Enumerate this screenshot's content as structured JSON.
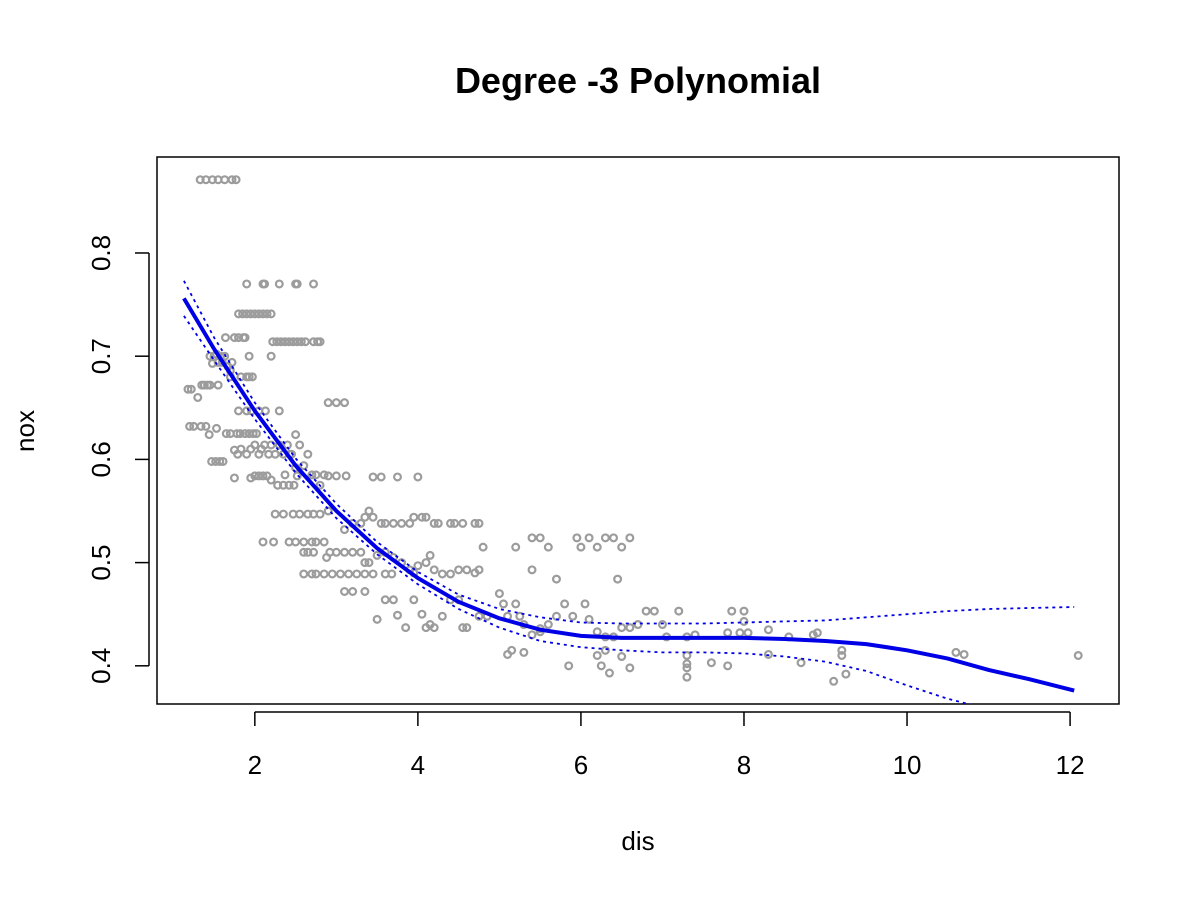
{
  "chart_data": {
    "type": "scatter",
    "title": "Degree -3 Polynomial",
    "xlabel": "dis",
    "ylabel": "nox",
    "xlim": [
      0.8,
      12.6
    ],
    "ylim": [
      0.363,
      0.893
    ],
    "x_ticks": [
      2,
      4,
      6,
      8,
      10,
      12
    ],
    "y_ticks": [
      0.4,
      0.5,
      0.6,
      0.7,
      0.8
    ],
    "grid": false,
    "legend": "none",
    "colors": {
      "points": "#9c9c9c",
      "fit": "#0000e6",
      "band": "#0000e6"
    },
    "points": [
      [
        1.33,
        0.871
      ],
      [
        1.4,
        0.871
      ],
      [
        1.48,
        0.871
      ],
      [
        1.55,
        0.871
      ],
      [
        1.63,
        0.871
      ],
      [
        1.72,
        0.871
      ],
      [
        1.77,
        0.871
      ],
      [
        1.18,
        0.668
      ],
      [
        1.22,
        0.668
      ],
      [
        1.2,
        0.632
      ],
      [
        1.25,
        0.632
      ],
      [
        1.3,
        0.66
      ],
      [
        1.35,
        0.672
      ],
      [
        1.38,
        0.672
      ],
      [
        1.42,
        0.672
      ],
      [
        1.45,
        0.672
      ],
      [
        1.34,
        0.632
      ],
      [
        1.4,
        0.632
      ],
      [
        1.44,
        0.624
      ],
      [
        1.53,
        0.63
      ],
      [
        1.47,
        0.598
      ],
      [
        1.52,
        0.598
      ],
      [
        1.57,
        0.598
      ],
      [
        1.61,
        0.598
      ],
      [
        1.45,
        0.7
      ],
      [
        1.48,
        0.693
      ],
      [
        1.5,
        0.7
      ],
      [
        1.53,
        0.702
      ],
      [
        1.55,
        0.694
      ],
      [
        1.58,
        0.7
      ],
      [
        1.6,
        0.694
      ],
      [
        1.63,
        0.7
      ],
      [
        1.67,
        0.69
      ],
      [
        1.7,
        0.686
      ],
      [
        1.72,
        0.694
      ],
      [
        1.55,
        0.672
      ],
      [
        1.64,
        0.718
      ],
      [
        1.7,
        0.68
      ],
      [
        1.75,
        0.718
      ],
      [
        1.8,
        0.718
      ],
      [
        1.83,
        0.68
      ],
      [
        1.86,
        0.718
      ],
      [
        1.88,
        0.718
      ],
      [
        1.9,
        0.68
      ],
      [
        1.93,
        0.68
      ],
      [
        1.97,
        0.68
      ],
      [
        1.65,
        0.625
      ],
      [
        1.7,
        0.625
      ],
      [
        1.78,
        0.625
      ],
      [
        1.82,
        0.625
      ],
      [
        1.88,
        0.625
      ],
      [
        1.93,
        0.625
      ],
      [
        1.98,
        0.625
      ],
      [
        2.02,
        0.625
      ],
      [
        1.8,
        0.741
      ],
      [
        1.85,
        0.741
      ],
      [
        1.9,
        0.741
      ],
      [
        1.95,
        0.741
      ],
      [
        2.0,
        0.741
      ],
      [
        2.05,
        0.741
      ],
      [
        2.1,
        0.741
      ],
      [
        2.15,
        0.741
      ],
      [
        2.2,
        0.741
      ],
      [
        1.9,
        0.77
      ],
      [
        2.1,
        0.77
      ],
      [
        2.12,
        0.77
      ],
      [
        2.3,
        0.77
      ],
      [
        2.5,
        0.77
      ],
      [
        2.52,
        0.77
      ],
      [
        2.72,
        0.77
      ],
      [
        1.93,
        0.7
      ],
      [
        2.2,
        0.7
      ],
      [
        2.22,
        0.714
      ],
      [
        2.27,
        0.714
      ],
      [
        2.32,
        0.714
      ],
      [
        2.37,
        0.714
      ],
      [
        2.42,
        0.714
      ],
      [
        2.47,
        0.714
      ],
      [
        2.52,
        0.714
      ],
      [
        2.57,
        0.714
      ],
      [
        2.62,
        0.714
      ],
      [
        2.72,
        0.714
      ],
      [
        2.77,
        0.714
      ],
      [
        2.8,
        0.714
      ],
      [
        1.8,
        0.647
      ],
      [
        1.9,
        0.647
      ],
      [
        1.96,
        0.647
      ],
      [
        2.05,
        0.647
      ],
      [
        2.13,
        0.647
      ],
      [
        2.3,
        0.647
      ],
      [
        1.75,
        0.609
      ],
      [
        1.79,
        0.605
      ],
      [
        1.83,
        0.61
      ],
      [
        1.9,
        0.605
      ],
      [
        1.95,
        0.61
      ],
      [
        2.0,
        0.614
      ],
      [
        2.05,
        0.605
      ],
      [
        2.08,
        0.61
      ],
      [
        2.12,
        0.614
      ],
      [
        2.17,
        0.605
      ],
      [
        2.2,
        0.614
      ],
      [
        2.25,
        0.605
      ],
      [
        2.3,
        0.614
      ],
      [
        2.35,
        0.605
      ],
      [
        2.4,
        0.614
      ],
      [
        2.45,
        0.605
      ],
      [
        2.5,
        0.624
      ],
      [
        1.75,
        0.582
      ],
      [
        1.95,
        0.582
      ],
      [
        2.0,
        0.584
      ],
      [
        2.05,
        0.584
      ],
      [
        2.1,
        0.584
      ],
      [
        2.15,
        0.584
      ],
      [
        2.2,
        0.58
      ],
      [
        2.28,
        0.575
      ],
      [
        2.35,
        0.575
      ],
      [
        2.42,
        0.575
      ],
      [
        2.48,
        0.575
      ],
      [
        2.52,
        0.584
      ],
      [
        2.37,
        0.585
      ],
      [
        2.43,
        0.605
      ],
      [
        2.5,
        0.592
      ],
      [
        2.55,
        0.614
      ],
      [
        2.6,
        0.594
      ],
      [
        2.65,
        0.605
      ],
      [
        2.7,
        0.585
      ],
      [
        2.75,
        0.585
      ],
      [
        2.8,
        0.575
      ],
      [
        2.85,
        0.585
      ],
      [
        2.9,
        0.584
      ],
      [
        3.0,
        0.584
      ],
      [
        3.12,
        0.584
      ],
      [
        2.1,
        0.52
      ],
      [
        2.23,
        0.52
      ],
      [
        2.42,
        0.52
      ],
      [
        2.5,
        0.52
      ],
      [
        2.6,
        0.52
      ],
      [
        2.7,
        0.52
      ],
      [
        2.75,
        0.52
      ],
      [
        2.85,
        0.52
      ],
      [
        2.25,
        0.547
      ],
      [
        2.35,
        0.547
      ],
      [
        2.47,
        0.547
      ],
      [
        2.55,
        0.547
      ],
      [
        2.65,
        0.547
      ],
      [
        2.72,
        0.547
      ],
      [
        2.8,
        0.547
      ],
      [
        2.9,
        0.55
      ],
      [
        2.6,
        0.51
      ],
      [
        2.65,
        0.51
      ],
      [
        2.72,
        0.51
      ],
      [
        2.88,
        0.505
      ],
      [
        2.92,
        0.51
      ],
      [
        3.0,
        0.51
      ],
      [
        3.1,
        0.51
      ],
      [
        3.2,
        0.51
      ],
      [
        3.3,
        0.51
      ],
      [
        2.6,
        0.489
      ],
      [
        2.7,
        0.489
      ],
      [
        2.75,
        0.489
      ],
      [
        2.85,
        0.489
      ],
      [
        2.95,
        0.489
      ],
      [
        3.05,
        0.489
      ],
      [
        3.15,
        0.489
      ],
      [
        3.25,
        0.489
      ],
      [
        3.35,
        0.489
      ],
      [
        3.45,
        0.489
      ],
      [
        3.6,
        0.489
      ],
      [
        3.68,
        0.489
      ],
      [
        2.9,
        0.655
      ],
      [
        3.0,
        0.655
      ],
      [
        3.1,
        0.655
      ],
      [
        3.1,
        0.532
      ],
      [
        3.2,
        0.538
      ],
      [
        3.3,
        0.538
      ],
      [
        3.35,
        0.544
      ],
      [
        3.4,
        0.55
      ],
      [
        3.45,
        0.544
      ],
      [
        3.55,
        0.538
      ],
      [
        3.6,
        0.538
      ],
      [
        3.7,
        0.538
      ],
      [
        3.8,
        0.538
      ],
      [
        3.9,
        0.538
      ],
      [
        3.95,
        0.544
      ],
      [
        4.05,
        0.544
      ],
      [
        4.1,
        0.544
      ],
      [
        4.2,
        0.538
      ],
      [
        4.25,
        0.538
      ],
      [
        4.4,
        0.538
      ],
      [
        4.45,
        0.538
      ],
      [
        4.55,
        0.538
      ],
      [
        4.7,
        0.538
      ],
      [
        4.75,
        0.538
      ],
      [
        3.1,
        0.472
      ],
      [
        3.2,
        0.472
      ],
      [
        3.35,
        0.472
      ],
      [
        3.5,
        0.445
      ],
      [
        3.6,
        0.464
      ],
      [
        3.7,
        0.464
      ],
      [
        3.75,
        0.449
      ],
      [
        3.85,
        0.437
      ],
      [
        3.45,
        0.583
      ],
      [
        3.55,
        0.583
      ],
      [
        3.75,
        0.583
      ],
      [
        4.0,
        0.583
      ],
      [
        3.35,
        0.5
      ],
      [
        3.4,
        0.5
      ],
      [
        3.5,
        0.507
      ],
      [
        3.6,
        0.51
      ],
      [
        3.7,
        0.505
      ],
      [
        3.8,
        0.5
      ],
      [
        3.9,
        0.493
      ],
      [
        3.95,
        0.49
      ],
      [
        4.0,
        0.497
      ],
      [
        4.1,
        0.5
      ],
      [
        4.15,
        0.507
      ],
      [
        4.2,
        0.493
      ],
      [
        4.3,
        0.489
      ],
      [
        4.4,
        0.489
      ],
      [
        4.5,
        0.493
      ],
      [
        4.6,
        0.493
      ],
      [
        4.7,
        0.49
      ],
      [
        4.75,
        0.493
      ],
      [
        4.8,
        0.515
      ],
      [
        3.95,
        0.464
      ],
      [
        4.05,
        0.45
      ],
      [
        4.1,
        0.437
      ],
      [
        4.15,
        0.44
      ],
      [
        4.2,
        0.437
      ],
      [
        4.3,
        0.448
      ],
      [
        4.4,
        0.464
      ],
      [
        4.5,
        0.464
      ],
      [
        4.55,
        0.437
      ],
      [
        4.6,
        0.437
      ],
      [
        4.75,
        0.448
      ],
      [
        4.85,
        0.448
      ],
      [
        5.0,
        0.47
      ],
      [
        5.05,
        0.46
      ],
      [
        5.1,
        0.448
      ],
      [
        5.2,
        0.46
      ],
      [
        5.25,
        0.448
      ],
      [
        5.3,
        0.44
      ],
      [
        5.4,
        0.493
      ],
      [
        5.5,
        0.436
      ],
      [
        5.6,
        0.44
      ],
      [
        5.7,
        0.448
      ],
      [
        5.8,
        0.46
      ],
      [
        5.9,
        0.448
      ],
      [
        6.05,
        0.46
      ],
      [
        6.1,
        0.445
      ],
      [
        5.1,
        0.411
      ],
      [
        5.15,
        0.415
      ],
      [
        5.3,
        0.413
      ],
      [
        5.4,
        0.43
      ],
      [
        5.5,
        0.433
      ],
      [
        5.2,
        0.515
      ],
      [
        5.4,
        0.524
      ],
      [
        5.5,
        0.524
      ],
      [
        5.6,
        0.515
      ],
      [
        5.95,
        0.524
      ],
      [
        6.0,
        0.515
      ],
      [
        6.1,
        0.524
      ],
      [
        6.2,
        0.515
      ],
      [
        6.3,
        0.524
      ],
      [
        6.4,
        0.524
      ],
      [
        6.5,
        0.515
      ],
      [
        6.6,
        0.524
      ],
      [
        5.7,
        0.484
      ],
      [
        6.45,
        0.484
      ],
      [
        5.85,
        0.4
      ],
      [
        6.2,
        0.41
      ],
      [
        6.25,
        0.4
      ],
      [
        6.3,
        0.415
      ],
      [
        6.35,
        0.393
      ],
      [
        6.5,
        0.409
      ],
      [
        6.6,
        0.398
      ],
      [
        6.2,
        0.433
      ],
      [
        6.3,
        0.428
      ],
      [
        6.4,
        0.428
      ],
      [
        6.5,
        0.437
      ],
      [
        6.6,
        0.437
      ],
      [
        6.7,
        0.44
      ],
      [
        6.8,
        0.453
      ],
      [
        6.9,
        0.453
      ],
      [
        7.0,
        0.44
      ],
      [
        7.05,
        0.428
      ],
      [
        7.2,
        0.453
      ],
      [
        7.3,
        0.428
      ],
      [
        7.3,
        0.41
      ],
      [
        7.3,
        0.402
      ],
      [
        7.3,
        0.389
      ],
      [
        7.3,
        0.398
      ],
      [
        7.4,
        0.43
      ],
      [
        7.6,
        0.403
      ],
      [
        7.8,
        0.4
      ],
      [
        7.8,
        0.432
      ],
      [
        7.85,
        0.453
      ],
      [
        7.95,
        0.432
      ],
      [
        8.0,
        0.453
      ],
      [
        8.0,
        0.443
      ],
      [
        8.05,
        0.432
      ],
      [
        8.3,
        0.435
      ],
      [
        8.3,
        0.411
      ],
      [
        8.55,
        0.428
      ],
      [
        8.7,
        0.403
      ],
      [
        8.85,
        0.43
      ],
      [
        8.9,
        0.432
      ],
      [
        9.1,
        0.385
      ],
      [
        9.2,
        0.41
      ],
      [
        9.2,
        0.415
      ],
      [
        9.25,
        0.392
      ],
      [
        10.6,
        0.413
      ],
      [
        10.7,
        0.411
      ],
      [
        12.1,
        0.41
      ]
    ],
    "fit": {
      "x": [
        1.13,
        1.5,
        2.0,
        2.5,
        3.0,
        3.5,
        4.0,
        4.5,
        5.0,
        5.5,
        6.0,
        6.5,
        7.0,
        7.5,
        8.0,
        8.5,
        9.0,
        9.5,
        10.0,
        10.5,
        11.0,
        11.5,
        12.05
      ],
      "y": [
        0.756,
        0.707,
        0.647,
        0.594,
        0.55,
        0.514,
        0.485,
        0.462,
        0.446,
        0.435,
        0.429,
        0.427,
        0.427,
        0.427,
        0.427,
        0.426,
        0.424,
        0.421,
        0.415,
        0.407,
        0.396,
        0.387,
        0.376
      ]
    },
    "upper_band": {
      "x": [
        1.13,
        1.5,
        2.0,
        2.5,
        3.0,
        3.5,
        4.0,
        4.5,
        5.0,
        5.5,
        6.0,
        6.5,
        7.0,
        7.5,
        8.0,
        8.5,
        9.0,
        9.5,
        10.0,
        10.5,
        11.0,
        11.5,
        12.05
      ],
      "y": [
        0.773,
        0.718,
        0.655,
        0.601,
        0.557,
        0.52,
        0.491,
        0.469,
        0.455,
        0.447,
        0.442,
        0.441,
        0.441,
        0.441,
        0.442,
        0.443,
        0.444,
        0.447,
        0.45,
        0.453,
        0.455,
        0.456,
        0.457
      ]
    },
    "lower_band": {
      "x": [
        1.13,
        1.5,
        2.0,
        2.5,
        3.0,
        3.5,
        4.0,
        4.5,
        5.0,
        5.5,
        6.0,
        6.5,
        7.0,
        7.5,
        8.0,
        8.5,
        9.0,
        9.5,
        10.0,
        10.5,
        10.8
      ],
      "y": [
        0.739,
        0.696,
        0.639,
        0.587,
        0.543,
        0.508,
        0.479,
        0.455,
        0.437,
        0.424,
        0.418,
        0.415,
        0.413,
        0.413,
        0.412,
        0.409,
        0.404,
        0.395,
        0.381,
        0.368,
        0.362
      ]
    }
  }
}
